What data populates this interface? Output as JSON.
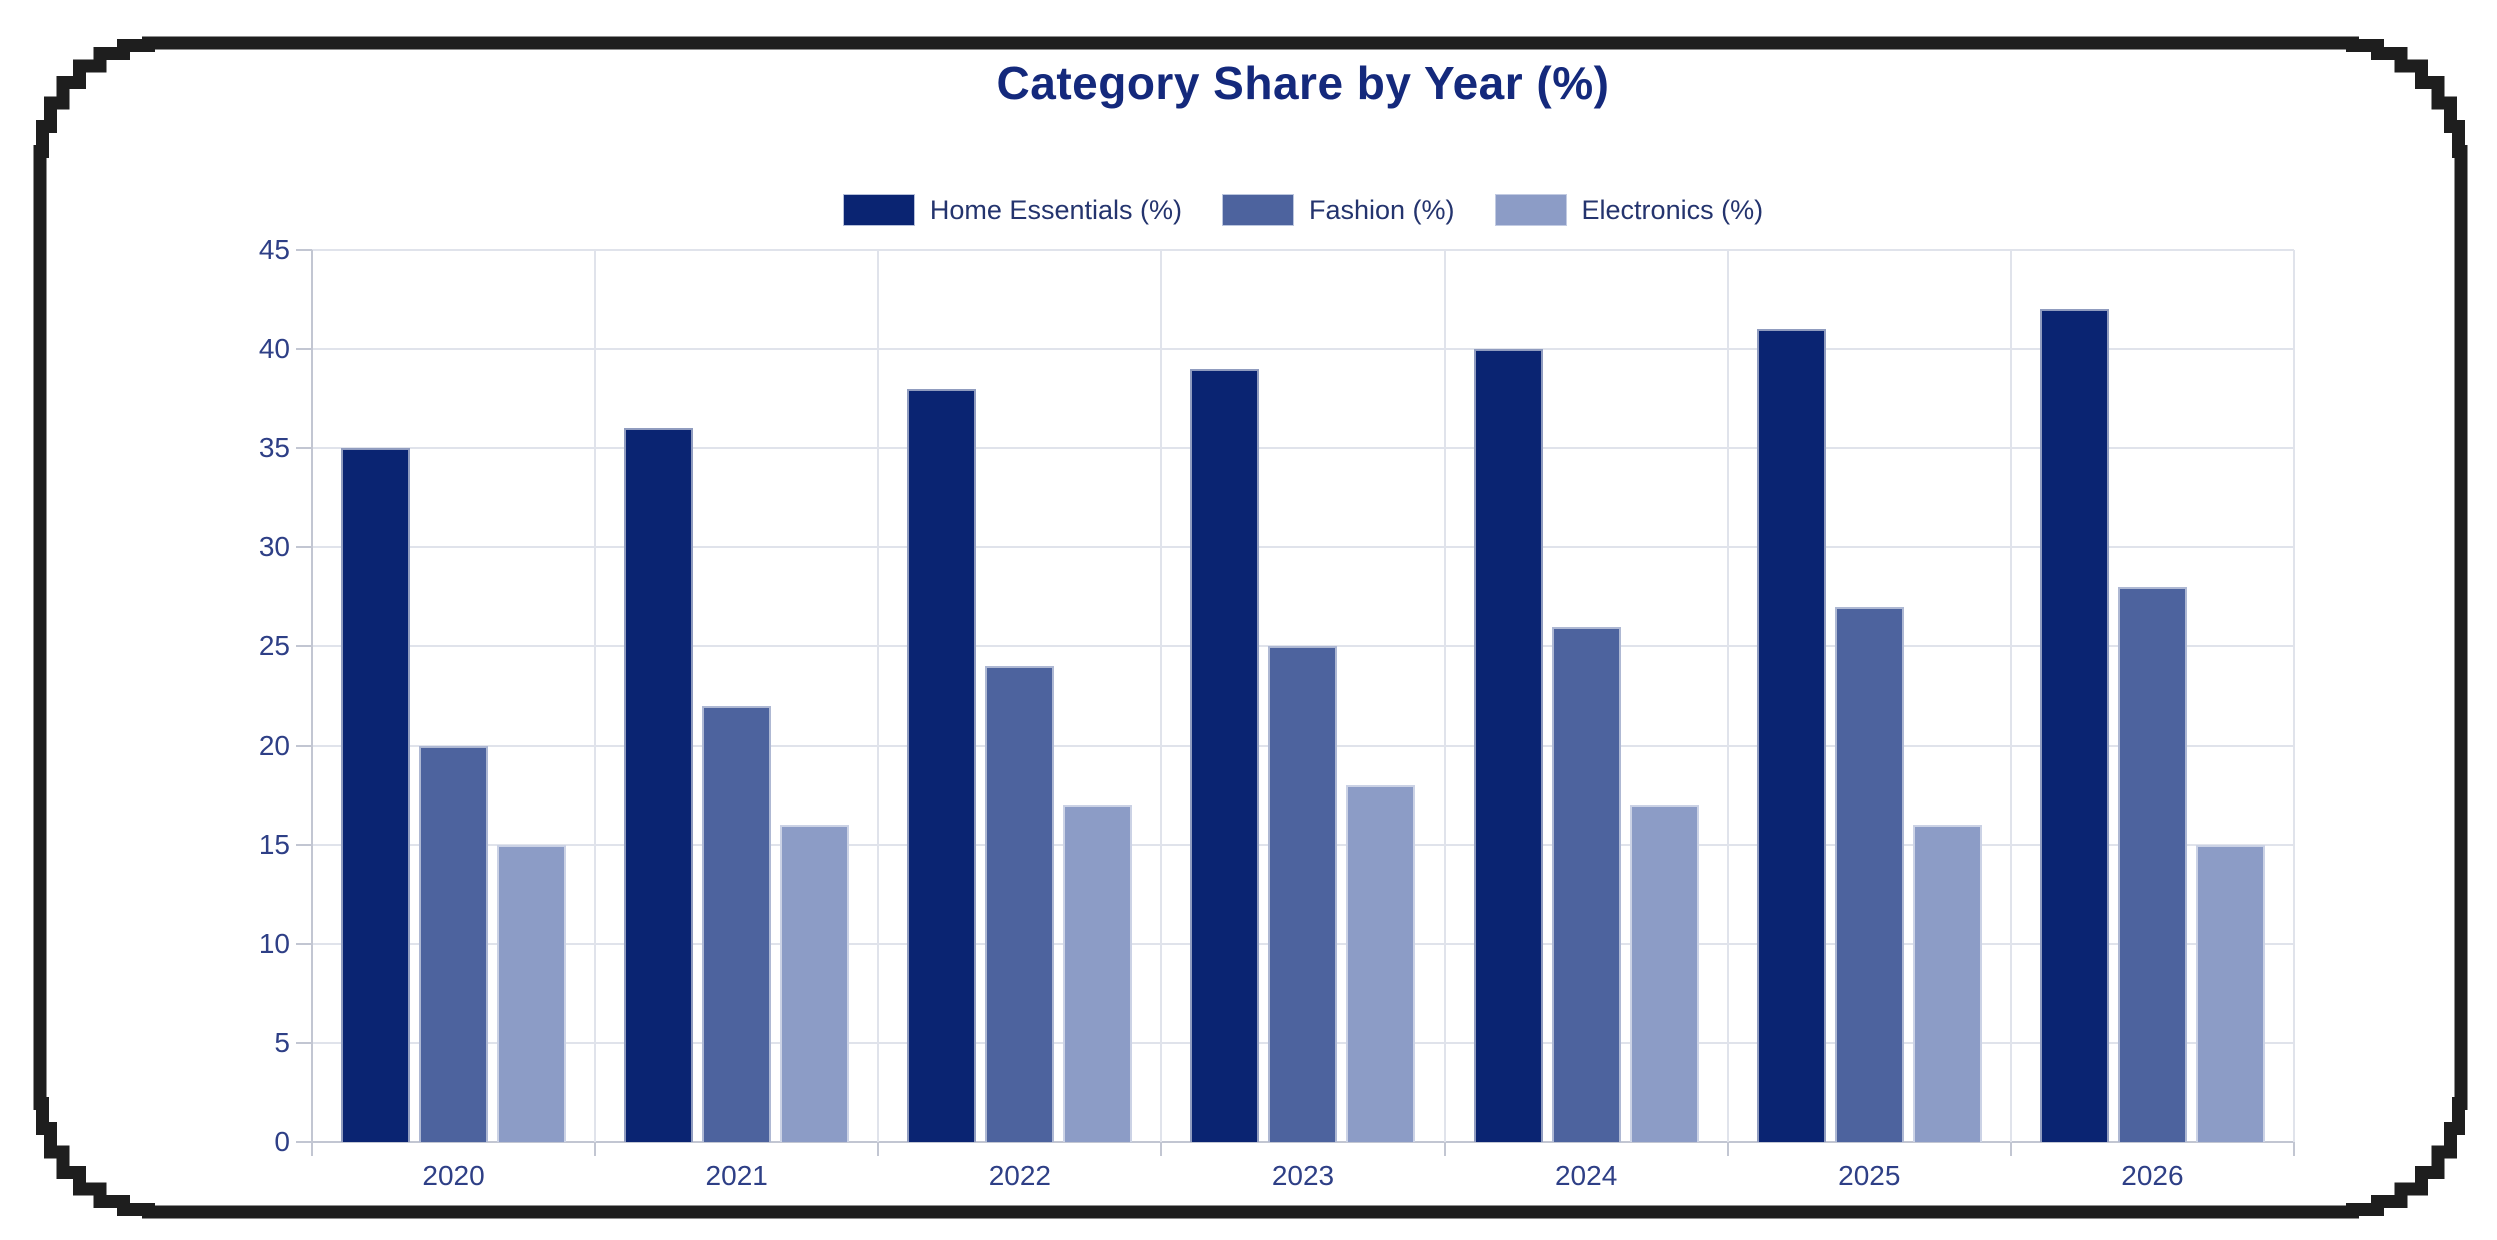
{
  "chart_data": {
    "type": "bar",
    "title": "Category Share by Year (%)",
    "categories": [
      "2020",
      "2021",
      "2022",
      "2023",
      "2024",
      "2025",
      "2026"
    ],
    "series": [
      {
        "name": "Home Essentials (%)",
        "color": "#0a2472",
        "values": [
          35,
          36,
          38,
          39,
          40,
          41,
          42
        ]
      },
      {
        "name": "Fashion (%)",
        "color": "#4d639e",
        "values": [
          20,
          22,
          24,
          25,
          26,
          27,
          28
        ]
      },
      {
        "name": "Electronics (%)",
        "color": "#8c9cc6",
        "values": [
          15,
          16,
          17,
          18,
          17,
          16,
          15
        ]
      }
    ],
    "xlabel": "",
    "ylabel": "",
    "ylim": [
      0,
      45
    ],
    "yticks": [
      0,
      5,
      10,
      15,
      20,
      25,
      30,
      35,
      40,
      45
    ],
    "grid": true,
    "legend_position": "top"
  },
  "frame": {
    "color": "#1e1e1e"
  }
}
